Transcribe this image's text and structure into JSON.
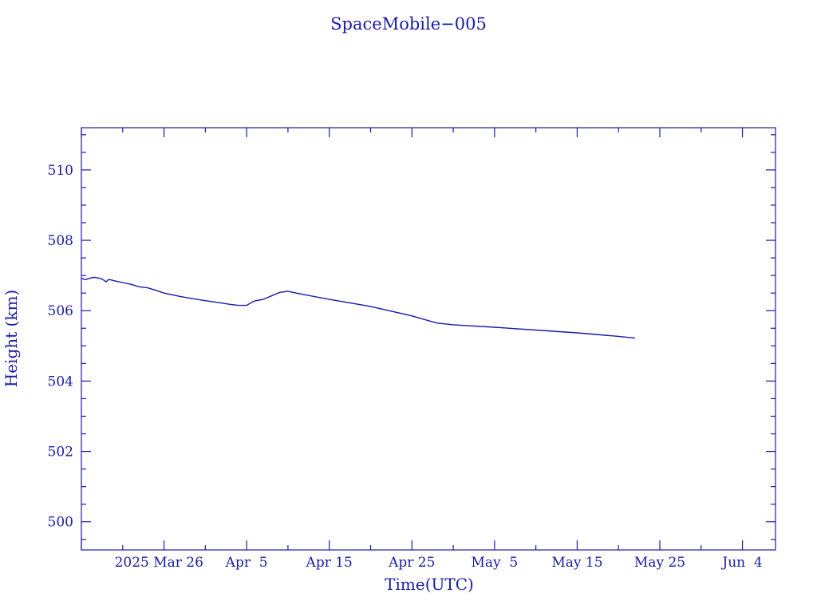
{
  "chart_data": {
    "type": "line",
    "title": "SpaceMobile−005",
    "xlabel": "Time(UTC)",
    "ylabel": "Height (km)",
    "xlim": [
      "2025-03-16",
      "2025-06-08"
    ],
    "ylim": [
      499.2,
      511.2
    ],
    "grid": false,
    "colors": {
      "axis": "#1a1aa6",
      "series": "#1a1aa6"
    },
    "x_ticks": [
      {
        "date": "2025-03-26",
        "label": "2025 Mar 26"
      },
      {
        "date": "2025-04-05",
        "label": "Apr  5"
      },
      {
        "date": "2025-04-15",
        "label": "Apr 15"
      },
      {
        "date": "2025-04-25",
        "label": "Apr 25"
      },
      {
        "date": "2025-05-05",
        "label": "May  5"
      },
      {
        "date": "2025-05-15",
        "label": "May 15"
      },
      {
        "date": "2025-05-25",
        "label": "May 25"
      },
      {
        "date": "2025-06-04",
        "label": "Jun  4"
      }
    ],
    "y_ticks": [
      {
        "value": 500,
        "label": "500"
      },
      {
        "value": 502,
        "label": "502"
      },
      {
        "value": 504,
        "label": "504"
      },
      {
        "value": 506,
        "label": "506"
      },
      {
        "value": 508,
        "label": "508"
      },
      {
        "value": 510,
        "label": "510"
      }
    ],
    "series": [
      {
        "x": [
          "2025-03-16",
          "2025-03-16T12:00",
          "2025-03-17",
          "2025-03-17T12:00",
          "2025-03-18",
          "2025-03-18T12:00",
          "2025-03-19",
          "2025-03-19T06:00",
          "2025-03-19T12:00",
          "2025-03-20",
          "2025-03-21",
          "2025-03-22",
          "2025-03-23",
          "2025-03-24",
          "2025-03-25",
          "2025-03-26",
          "2025-03-28",
          "2025-03-30",
          "2025-04-01",
          "2025-04-03",
          "2025-04-04",
          "2025-04-05",
          "2025-04-05T12:00",
          "2025-04-06",
          "2025-04-07",
          "2025-04-08",
          "2025-04-09",
          "2025-04-10",
          "2025-04-11",
          "2025-04-15",
          "2025-04-20",
          "2025-04-25",
          "2025-04-28",
          "2025-04-30",
          "2025-05-05",
          "2025-05-10",
          "2025-05-15",
          "2025-05-20",
          "2025-05-22"
        ],
        "y": [
          506.92,
          506.88,
          506.92,
          506.95,
          506.93,
          506.9,
          506.82,
          506.88,
          506.88,
          506.85,
          506.8,
          506.75,
          506.68,
          506.65,
          506.58,
          506.5,
          506.4,
          506.32,
          506.25,
          506.18,
          506.15,
          506.15,
          506.22,
          506.28,
          506.32,
          506.42,
          506.52,
          506.55,
          506.5,
          506.32,
          506.12,
          505.85,
          505.65,
          505.6,
          505.53,
          505.45,
          505.37,
          505.27,
          505.22
        ]
      }
    ]
  }
}
